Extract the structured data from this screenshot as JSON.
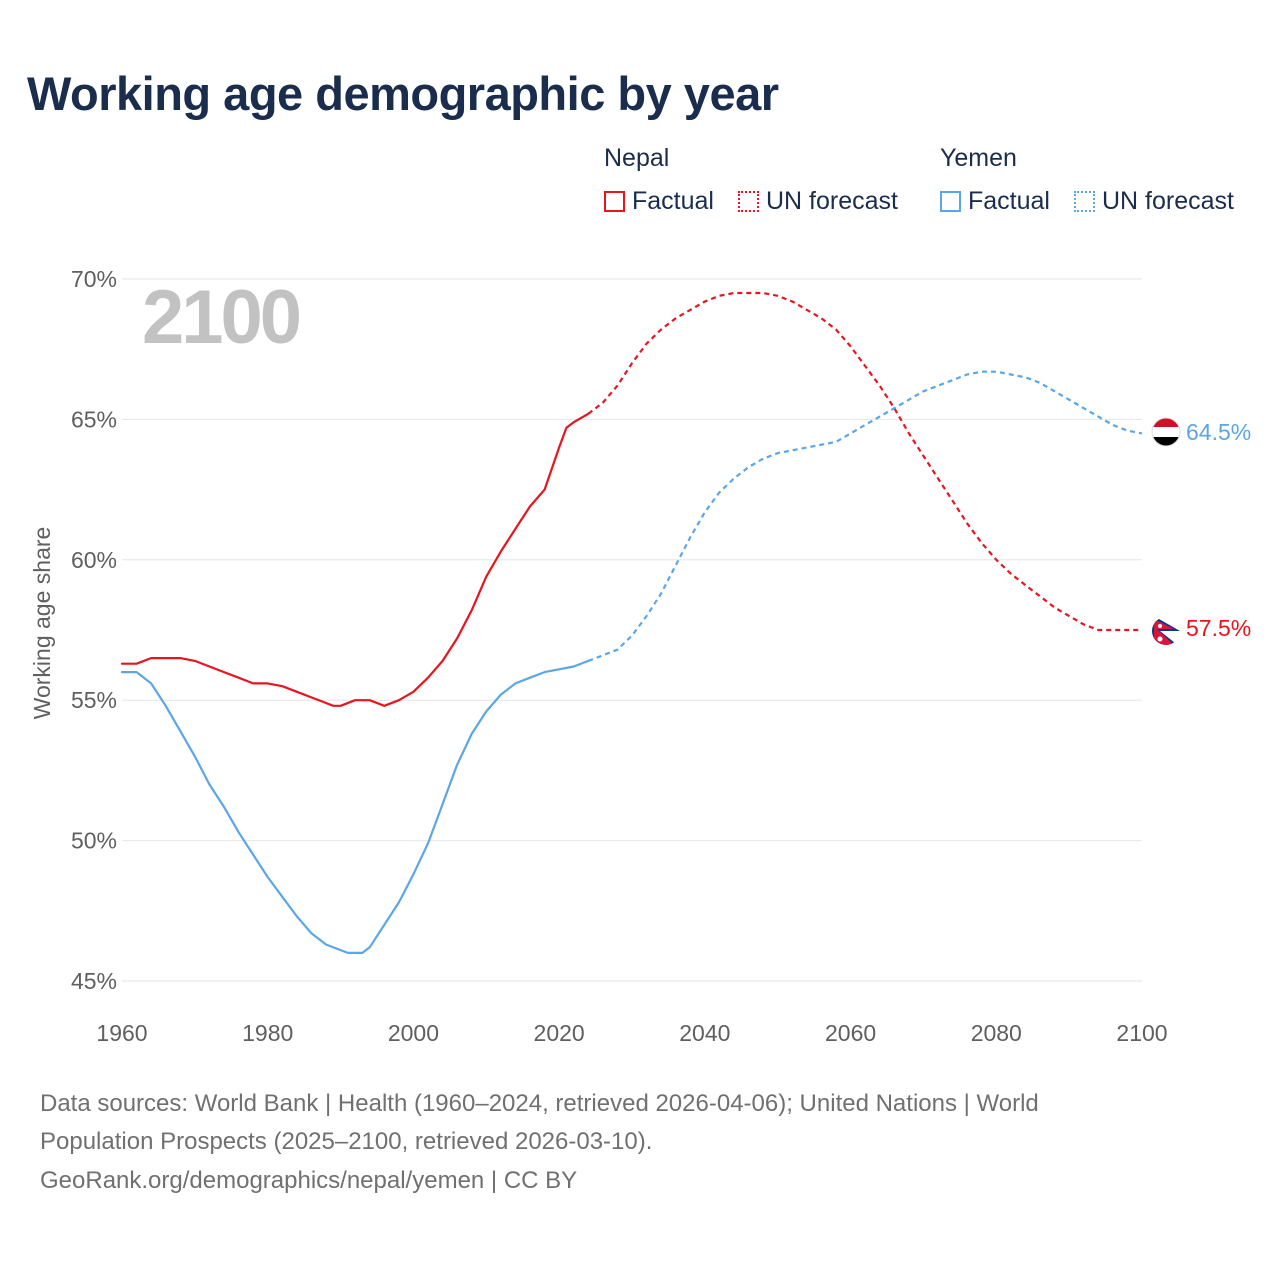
{
  "title": "Working age demographic by year",
  "legend": {
    "groups": [
      {
        "name": "Nepal",
        "factual_label": "Factual",
        "forecast_label": "UN forecast",
        "color": "#e8141e"
      },
      {
        "name": "Yemen",
        "factual_label": "Factual",
        "forecast_label": "UN forecast",
        "color": "#5ba6e6"
      }
    ]
  },
  "watermark_year": "2100",
  "end_labels": {
    "nepal": "57.5%",
    "yemen": "64.5%"
  },
  "footer": {
    "line1": "Data sources: World Bank | Health (1960–2024, retrieved 2026-04-06); United Nations | World",
    "line2": "Population Prospects (2025–2100, retrieved 2026-03-10).",
    "line3": "GeoRank.org/demographics/nepal/yemen | CC BY"
  },
  "chart_data": {
    "type": "line",
    "title": "Working age demographic by year",
    "xlabel": "",
    "ylabel": "Working age share",
    "xlim": [
      1960,
      2100
    ],
    "ylim": [
      45,
      70
    ],
    "x_ticks": [
      1960,
      1980,
      2000,
      2020,
      2040,
      2060,
      2080,
      2100
    ],
    "x_tick_labels": [
      "1960",
      "1980",
      "2000",
      "2020",
      "2040",
      "2060",
      "2080",
      "2100"
    ],
    "y_ticks": [
      45,
      50,
      55,
      60,
      65,
      70
    ],
    "y_tick_labels": [
      "45%",
      "50%",
      "55%",
      "60%",
      "65%",
      "70%"
    ],
    "grid": true,
    "factual_end_year": 2024,
    "series": [
      {
        "name": "Nepal",
        "color": "#e8141e",
        "end_label": "57.5%",
        "x": [
          1960,
          1962,
          1964,
          1966,
          1968,
          1970,
          1972,
          1974,
          1976,
          1978,
          1980,
          1982,
          1984,
          1986,
          1988,
          1989,
          1990,
          1992,
          1994,
          1996,
          1998,
          2000,
          2002,
          2004,
          2006,
          2008,
          2010,
          2012,
          2014,
          2016,
          2018,
          2020,
          2021,
          2022,
          2024,
          2026,
          2028,
          2030,
          2032,
          2034,
          2036,
          2038,
          2040,
          2042,
          2044,
          2046,
          2048,
          2050,
          2052,
          2054,
          2056,
          2058,
          2060,
          2062,
          2064,
          2066,
          2068,
          2070,
          2072,
          2074,
          2076,
          2078,
          2080,
          2082,
          2084,
          2086,
          2088,
          2090,
          2092,
          2094,
          2096,
          2098,
          2100
        ],
        "values": [
          56.3,
          56.3,
          56.5,
          56.5,
          56.5,
          56.4,
          56.2,
          56.0,
          55.8,
          55.6,
          55.6,
          55.5,
          55.3,
          55.1,
          54.9,
          54.8,
          54.8,
          55.0,
          55.0,
          54.8,
          55.0,
          55.3,
          55.8,
          56.4,
          57.2,
          58.2,
          59.4,
          60.3,
          61.1,
          61.9,
          62.5,
          64.0,
          64.7,
          64.9,
          65.2,
          65.6,
          66.2,
          67.0,
          67.7,
          68.2,
          68.6,
          68.9,
          69.2,
          69.4,
          69.5,
          69.5,
          69.5,
          69.4,
          69.2,
          68.9,
          68.6,
          68.2,
          67.6,
          66.9,
          66.2,
          65.4,
          64.5,
          63.7,
          62.9,
          62.1,
          61.3,
          60.6,
          60.0,
          59.5,
          59.1,
          58.7,
          58.3,
          58.0,
          57.7,
          57.5,
          57.5,
          57.5,
          57.5
        ]
      },
      {
        "name": "Yemen",
        "color": "#5ba6e6",
        "end_label": "64.5%",
        "x": [
          1960,
          1962,
          1964,
          1966,
          1968,
          1970,
          1972,
          1974,
          1976,
          1978,
          1980,
          1982,
          1984,
          1986,
          1988,
          1990,
          1991,
          1992,
          1993,
          1994,
          1996,
          1998,
          2000,
          2002,
          2004,
          2006,
          2008,
          2010,
          2012,
          2014,
          2016,
          2018,
          2020,
          2022,
          2024,
          2026,
          2028,
          2030,
          2032,
          2034,
          2036,
          2038,
          2040,
          2042,
          2044,
          2046,
          2048,
          2050,
          2052,
          2054,
          2056,
          2058,
          2060,
          2062,
          2064,
          2066,
          2068,
          2070,
          2072,
          2074,
          2076,
          2078,
          2080,
          2082,
          2084,
          2086,
          2088,
          2090,
          2092,
          2094,
          2096,
          2098,
          2100
        ],
        "values": [
          56.0,
          56.0,
          55.6,
          54.8,
          53.9,
          53.0,
          52.0,
          51.2,
          50.3,
          49.5,
          48.7,
          48.0,
          47.3,
          46.7,
          46.3,
          46.1,
          46.0,
          46.0,
          46.0,
          46.2,
          47.0,
          47.8,
          48.8,
          49.9,
          51.3,
          52.7,
          53.8,
          54.6,
          55.2,
          55.6,
          55.8,
          56.0,
          56.1,
          56.2,
          56.4,
          56.6,
          56.8,
          57.3,
          58.0,
          58.8,
          59.8,
          60.8,
          61.7,
          62.4,
          62.9,
          63.3,
          63.6,
          63.8,
          63.9,
          64.0,
          64.1,
          64.2,
          64.5,
          64.8,
          65.1,
          65.4,
          65.7,
          66.0,
          66.2,
          66.4,
          66.6,
          66.7,
          66.7,
          66.6,
          66.5,
          66.3,
          66.0,
          65.7,
          65.4,
          65.1,
          64.8,
          64.6,
          64.5
        ]
      }
    ]
  }
}
